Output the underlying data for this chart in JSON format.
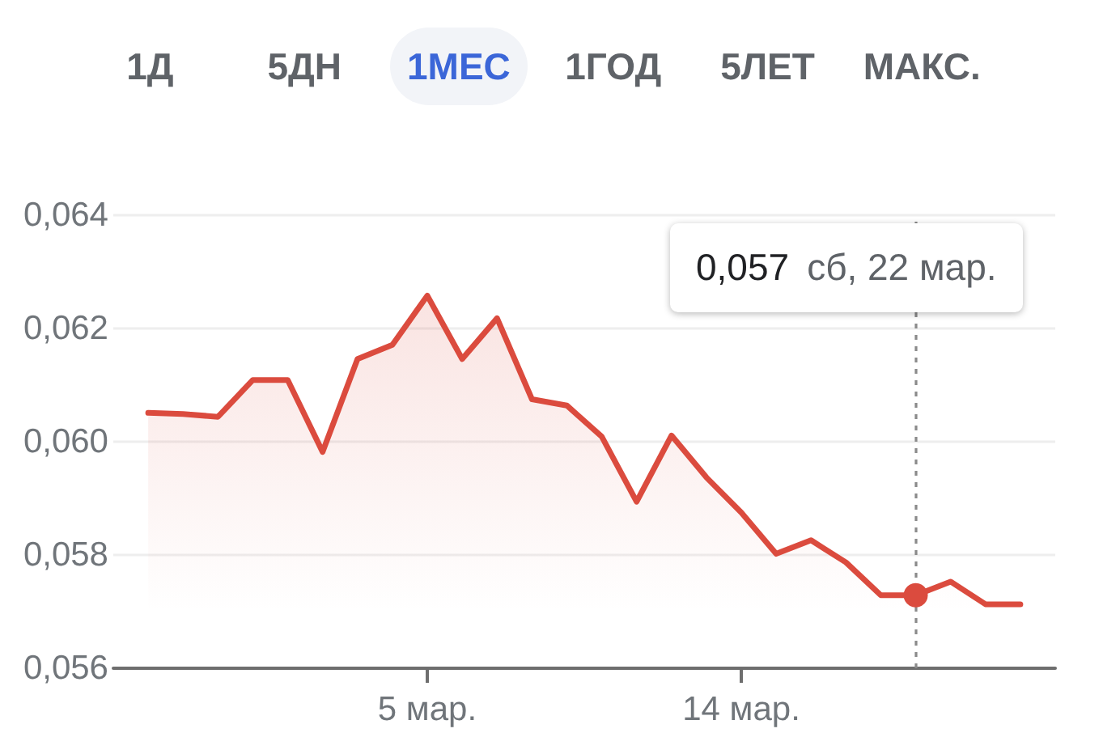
{
  "chart_data": {
    "type": "area",
    "annotations": [
      "1Д",
      "5ДН",
      "1МЕС",
      "1ГОД",
      "5ЛЕТ",
      "МАКС.",
      "0,057  сб, 22 мар."
    ],
    "x": [
      "--02-25",
      "--02-26",
      "--02-27",
      "--02-28",
      "--03-01",
      "--03-02",
      "--03-03",
      "--03-04",
      "--03-05",
      "--03-06",
      "--03-07",
      "--03-08",
      "--03-09",
      "--03-10",
      "--03-11",
      "--03-12",
      "--03-13",
      "--03-14",
      "--03-15",
      "--03-16",
      "--03-17",
      "--03-18",
      "--03-19",
      "--03-20",
      "--03-21",
      "--03-22"
    ],
    "values": [
      0.06051,
      0.06049,
      0.06044,
      0.06109,
      0.06109,
      0.05982,
      0.06146,
      0.06171,
      0.06258,
      0.06146,
      0.06218,
      0.06075,
      0.06064,
      0.06009,
      0.05894,
      0.06011,
      0.05937,
      0.05875,
      0.05802,
      0.05826,
      0.05787,
      0.05729,
      0.05729,
      0.05753,
      0.05713,
      0.05713
    ],
    "color": "#db4b3e",
    "marker": "none",
    "xlim": [
      "--02-24",
      "--03-23"
    ],
    "xticks": [
      {
        "value": "--03-05",
        "label": "5 мар."
      },
      {
        "value": "--03-14",
        "label": "14 мар."
      }
    ],
    "ylim": [
      0.056,
      0.064
    ],
    "yticks": [
      {
        "value": 0.056,
        "label": "0,056"
      },
      {
        "value": 0.058,
        "label": "0,058"
      },
      {
        "value": 0.06,
        "label": "0,060"
      },
      {
        "value": 0.062,
        "label": "0,062"
      },
      {
        "value": 0.064,
        "label": "0,064"
      }
    ],
    "grid": "y",
    "ref_lines": [
      {
        "axis": "x",
        "value": "--03-19",
        "color": "#8a8a8a",
        "line_style": "dotted"
      }
    ]
  }
}
